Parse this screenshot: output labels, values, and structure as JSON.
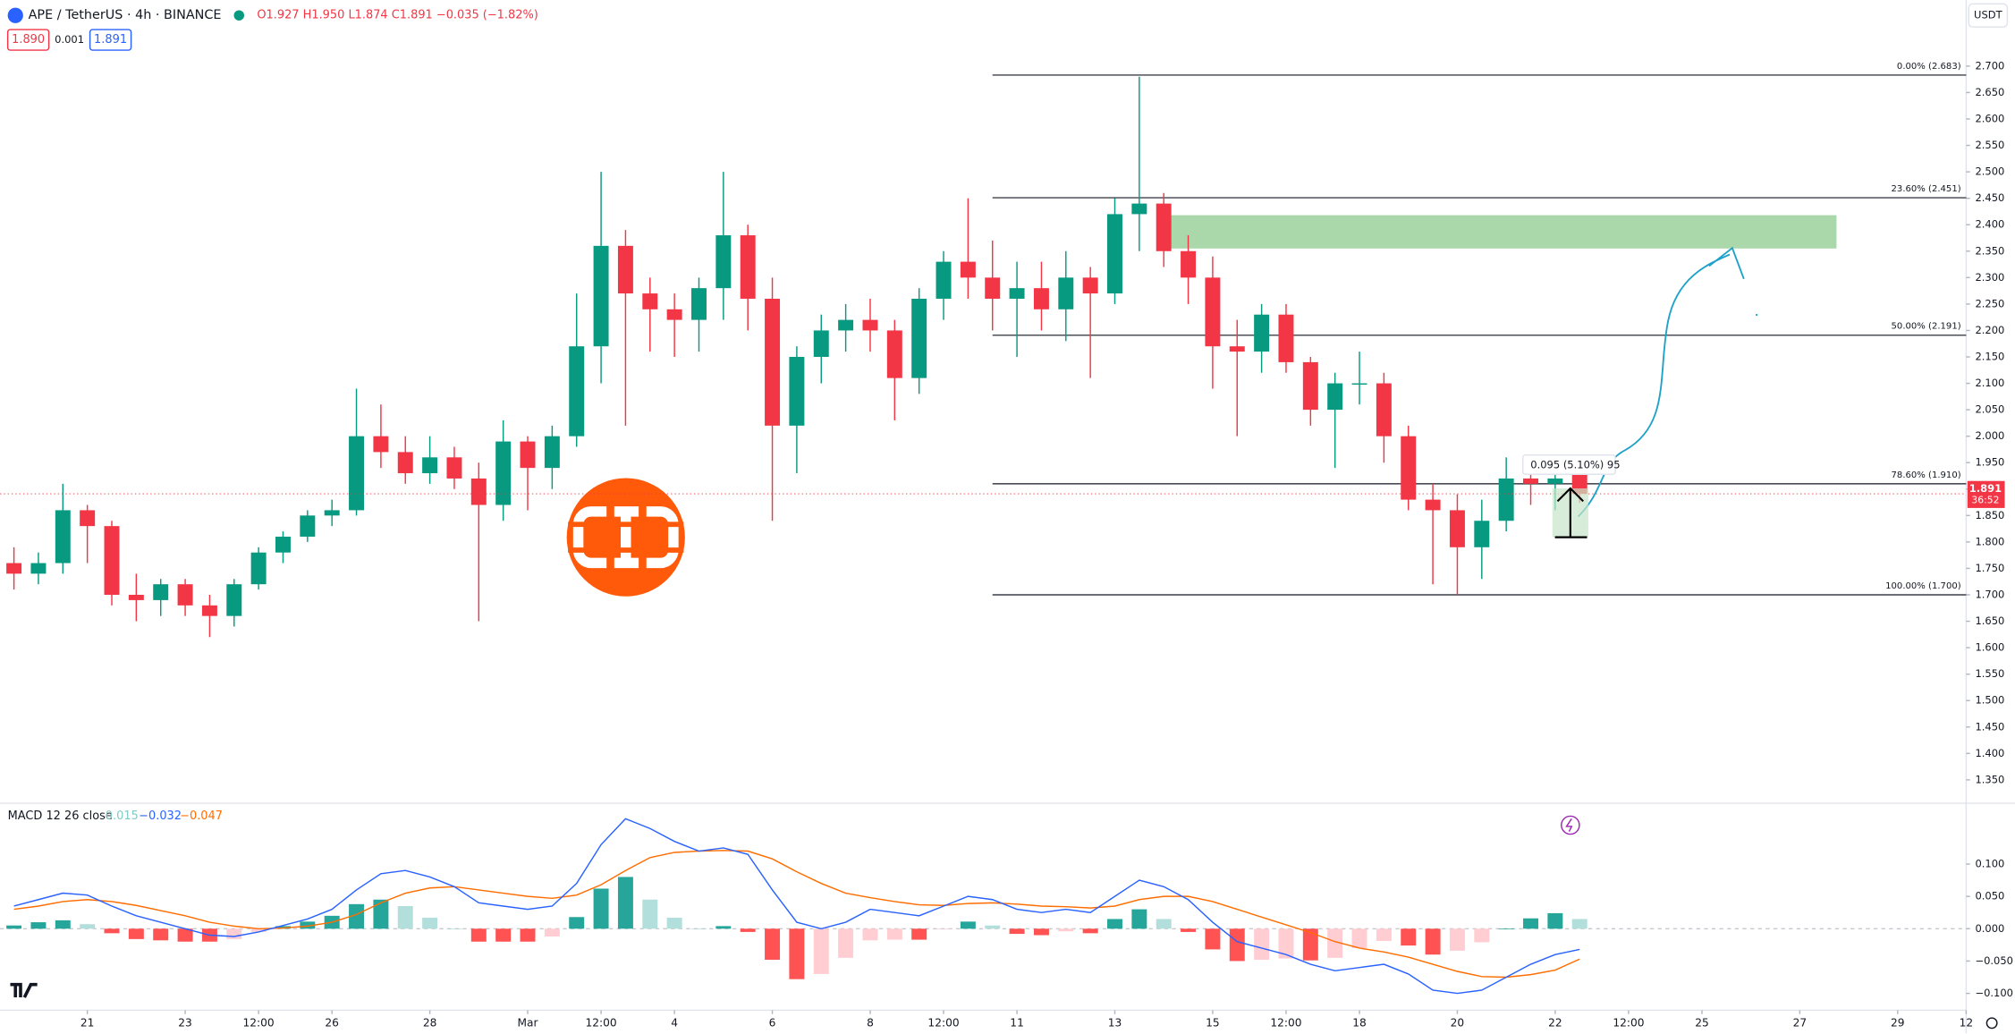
{
  "chart_data": {
    "type": "candlestick",
    "title": "APE / TetherUS · 4h · BINANCE",
    "quote": "O1.927 H1.950 L1.874 C1.891 −0.035 (−1.82%)",
    "bid": "1.890",
    "spread": "0.001",
    "ask": "1.891",
    "currency": "USDT",
    "countdown": "36:52",
    "measure": "0.095 (5.10%) 95",
    "colors": {
      "up": "#089981",
      "down": "#f23645",
      "hist_pos_strong": "#26a69a",
      "hist_pos_weak": "#b2dfdb",
      "hist_neg_strong": "#ff5252",
      "hist_neg_weak": "#ffcdd2"
    },
    "x": [
      -1.5,
      -1,
      -0.5,
      0,
      0.5,
      1,
      1.5,
      2,
      2.5,
      3,
      3.5,
      4,
      4.5,
      5,
      5.5,
      6,
      6.5,
      7,
      7.5,
      8,
      8.5,
      9,
      9.5,
      10,
      10.5,
      11,
      11.5,
      12,
      12.5,
      13,
      13.5,
      14,
      14.5,
      15,
      15.5,
      16,
      16.5,
      17,
      17.5,
      18,
      18.5,
      19,
      19.5,
      20,
      20.5,
      21,
      21.5,
      22,
      22.5,
      23,
      23.5,
      24,
      24.5,
      25,
      25.5,
      26,
      26.5,
      27,
      27.5,
      28,
      28.5,
      29,
      29.5,
      30,
      30.5
    ],
    "open": [
      1.76,
      1.74,
      1.76,
      1.86,
      1.83,
      1.7,
      1.69,
      1.72,
      1.68,
      1.66,
      1.72,
      1.78,
      1.81,
      1.85,
      1.86,
      2.0,
      1.97,
      1.93,
      1.96,
      1.92,
      1.87,
      1.99,
      1.94,
      2.0,
      2.17,
      2.36,
      2.27,
      2.24,
      2.22,
      2.28,
      2.38,
      2.26,
      2.02,
      2.15,
      2.2,
      2.22,
      2.2,
      2.11,
      2.26,
      2.33,
      2.3,
      2.26,
      2.28,
      2.24,
      2.3,
      2.27,
      2.42,
      2.44,
      2.35,
      2.3,
      2.17,
      2.16,
      2.23,
      2.14,
      2.05,
      2.1,
      2.1,
      2.0,
      1.88,
      1.86,
      1.79,
      1.84,
      1.92,
      1.91,
      1.927
    ],
    "high": [
      1.79,
      1.78,
      1.91,
      1.87,
      1.84,
      1.74,
      1.73,
      1.73,
      1.7,
      1.73,
      1.79,
      1.82,
      1.86,
      1.88,
      2.09,
      2.06,
      2.0,
      2.0,
      1.98,
      1.95,
      2.03,
      2.0,
      2.02,
      2.27,
      2.5,
      2.39,
      2.3,
      2.27,
      2.3,
      2.5,
      2.4,
      2.3,
      2.17,
      2.23,
      2.25,
      2.26,
      2.22,
      2.28,
      2.35,
      2.45,
      2.37,
      2.33,
      2.33,
      2.35,
      2.32,
      2.45,
      2.68,
      2.46,
      2.38,
      2.34,
      2.22,
      2.25,
      2.25,
      2.15,
      2.12,
      2.16,
      2.12,
      2.02,
      1.91,
      1.89,
      1.88,
      1.96,
      1.95,
      1.94,
      1.95
    ],
    "low": [
      1.71,
      1.72,
      1.74,
      1.76,
      1.68,
      1.65,
      1.66,
      1.66,
      1.62,
      1.64,
      1.71,
      1.76,
      1.8,
      1.83,
      1.85,
      1.94,
      1.91,
      1.91,
      1.9,
      1.65,
      1.84,
      1.86,
      1.9,
      1.98,
      2.1,
      2.02,
      2.16,
      2.15,
      2.16,
      2.22,
      2.2,
      1.84,
      1.93,
      2.1,
      2.16,
      2.16,
      2.03,
      2.08,
      2.22,
      2.26,
      2.2,
      2.15,
      2.2,
      2.18,
      2.11,
      2.25,
      2.35,
      2.32,
      2.25,
      2.09,
      2.0,
      2.12,
      2.12,
      2.02,
      1.94,
      2.06,
      1.95,
      1.86,
      1.72,
      1.7,
      1.73,
      1.82,
      1.87,
      1.86,
      1.874
    ],
    "close": [
      1.74,
      1.76,
      1.86,
      1.83,
      1.7,
      1.69,
      1.72,
      1.68,
      1.66,
      1.72,
      1.78,
      1.81,
      1.85,
      1.86,
      2.0,
      1.97,
      1.93,
      1.96,
      1.92,
      1.87,
      1.99,
      1.94,
      2.0,
      2.17,
      2.36,
      2.27,
      2.24,
      2.22,
      2.28,
      2.38,
      2.26,
      2.02,
      2.15,
      2.2,
      2.22,
      2.2,
      2.11,
      2.26,
      2.33,
      2.3,
      2.26,
      2.28,
      2.24,
      2.3,
      2.27,
      2.42,
      2.44,
      2.35,
      2.3,
      2.17,
      2.16,
      2.23,
      2.14,
      2.05,
      2.1,
      2.1,
      2.0,
      1.88,
      1.86,
      1.79,
      1.84,
      1.92,
      1.91,
      1.92,
      1.891
    ],
    "xlim": [
      -1.785,
      38.4
    ],
    "xticks": [
      {
        "value": 0,
        "label": "21"
      },
      {
        "value": 2,
        "label": "23"
      },
      {
        "value": 3.5,
        "label": "12:00"
      },
      {
        "value": 5,
        "label": "26"
      },
      {
        "value": 7,
        "label": "28"
      },
      {
        "value": 9,
        "label": "Mar"
      },
      {
        "value": 10.5,
        "label": "12:00"
      },
      {
        "value": 12,
        "label": "4"
      },
      {
        "value": 14,
        "label": "6"
      },
      {
        "value": 16,
        "label": "8"
      },
      {
        "value": 17.5,
        "label": "12:00"
      },
      {
        "value": 19,
        "label": "11"
      },
      {
        "value": 21,
        "label": "13"
      },
      {
        "value": 23,
        "label": "15"
      },
      {
        "value": 24.5,
        "label": "12:00"
      },
      {
        "value": 26,
        "label": "18"
      },
      {
        "value": 28,
        "label": "20"
      },
      {
        "value": 30,
        "label": "22"
      },
      {
        "value": 31.5,
        "label": "12:00"
      },
      {
        "value": 33,
        "label": "25"
      },
      {
        "value": 35,
        "label": "27"
      },
      {
        "value": 37,
        "label": "29"
      },
      {
        "value": 38.4,
        "label": "12"
      }
    ],
    "ylim": [
      1.313,
      2.825
    ],
    "yticks": [
      {
        "value": 1.35,
        "label": "1.350"
      },
      {
        "value": 1.4,
        "label": "1.400"
      },
      {
        "value": 1.45,
        "label": "1.450"
      },
      {
        "value": 1.5,
        "label": "1.500"
      },
      {
        "value": 1.55,
        "label": "1.550"
      },
      {
        "value": 1.6,
        "label": "1.600"
      },
      {
        "value": 1.65,
        "label": "1.650"
      },
      {
        "value": 1.7,
        "label": "1.700"
      },
      {
        "value": 1.75,
        "label": "1.750"
      },
      {
        "value": 1.8,
        "label": "1.800"
      },
      {
        "value": 1.85,
        "label": "1.850"
      },
      {
        "value": 1.9,
        "label": "1.900"
      },
      {
        "value": 1.95,
        "label": "1.950"
      },
      {
        "value": 2.0,
        "label": "2.000"
      },
      {
        "value": 2.05,
        "label": "2.050"
      },
      {
        "value": 2.1,
        "label": "2.100"
      },
      {
        "value": 2.15,
        "label": "2.150"
      },
      {
        "value": 2.2,
        "label": "2.200"
      },
      {
        "value": 2.25,
        "label": "2.250"
      },
      {
        "value": 2.3,
        "label": "2.300"
      },
      {
        "value": 2.35,
        "label": "2.350"
      },
      {
        "value": 2.4,
        "label": "2.400"
      },
      {
        "value": 2.45,
        "label": "2.450"
      },
      {
        "value": 2.5,
        "label": "2.500"
      },
      {
        "value": 2.55,
        "label": "2.550"
      },
      {
        "value": 2.6,
        "label": "2.600"
      },
      {
        "value": 2.65,
        "label": "2.650"
      },
      {
        "value": 2.7,
        "label": "2.700"
      }
    ],
    "fib": {
      "x_start": 18.5,
      "levels": [
        {
          "value": 2.683,
          "label": "0.00% (2.683)"
        },
        {
          "value": 2.451,
          "label": "23.60% (2.451)"
        },
        {
          "value": 2.191,
          "label": "50.00% (2.191)"
        },
        {
          "value": 1.91,
          "label": "78.60% (1.910)"
        },
        {
          "value": 1.7,
          "label": "100.00% (1.700)"
        }
      ]
    },
    "zone": {
      "x": [
        22.0,
        35.75
      ],
      "y": [
        2.355,
        2.418
      ],
      "color": "#a5d6a7"
    },
    "macd": {
      "label": "MACD 12 26 close",
      "hist": [
        0.005,
        0.01,
        0.013,
        0.007,
        -0.007,
        -0.016,
        -0.018,
        -0.02,
        -0.02,
        -0.016,
        -0.005,
        0.004,
        0.011,
        0.02,
        0.038,
        0.045,
        0.035,
        0.017,
        0.0,
        -0.02,
        -0.02,
        -0.02,
        -0.012,
        0.018,
        0.062,
        0.08,
        0.045,
        0.017,
        0.0,
        0.004,
        -0.005,
        -0.048,
        -0.078,
        -0.07,
        -0.045,
        -0.018,
        -0.017,
        -0.017,
        -0.001,
        0.011,
        0.005,
        -0.008,
        -0.01,
        -0.004,
        -0.007,
        0.015,
        0.03,
        0.015,
        -0.005,
        -0.032,
        -0.05,
        -0.048,
        -0.046,
        -0.049,
        -0.045,
        -0.03,
        -0.019,
        -0.026,
        -0.04,
        -0.034,
        -0.021,
        0.0,
        0.016,
        0.024,
        0.015
      ],
      "macd": [
        0.035,
        0.045,
        0.055,
        0.052,
        0.035,
        0.02,
        0.01,
        0.0,
        -0.01,
        -0.012,
        -0.005,
        0.005,
        0.015,
        0.03,
        0.06,
        0.085,
        0.09,
        0.08,
        0.065,
        0.04,
        0.035,
        0.03,
        0.035,
        0.07,
        0.13,
        0.17,
        0.155,
        0.135,
        0.12,
        0.125,
        0.115,
        0.06,
        0.01,
        0.0,
        0.01,
        0.03,
        0.025,
        0.02,
        0.035,
        0.05,
        0.045,
        0.03,
        0.025,
        0.03,
        0.025,
        0.05,
        0.075,
        0.065,
        0.045,
        0.01,
        -0.02,
        -0.03,
        -0.04,
        -0.055,
        -0.065,
        -0.06,
        -0.055,
        -0.07,
        -0.095,
        -0.1,
        -0.095,
        -0.075,
        -0.055,
        -0.04,
        -0.032
      ],
      "signal": [
        0.03,
        0.035,
        0.042,
        0.045,
        0.042,
        0.036,
        0.028,
        0.02,
        0.01,
        0.004,
        0.0,
        0.001,
        0.004,
        0.01,
        0.022,
        0.04,
        0.055,
        0.063,
        0.065,
        0.06,
        0.055,
        0.05,
        0.047,
        0.052,
        0.068,
        0.09,
        0.11,
        0.118,
        0.12,
        0.121,
        0.12,
        0.108,
        0.088,
        0.07,
        0.055,
        0.048,
        0.042,
        0.037,
        0.036,
        0.039,
        0.04,
        0.038,
        0.035,
        0.034,
        0.032,
        0.035,
        0.045,
        0.05,
        0.05,
        0.042,
        0.03,
        0.018,
        0.006,
        -0.006,
        -0.02,
        -0.03,
        -0.036,
        -0.044,
        -0.055,
        -0.066,
        -0.074,
        -0.075,
        -0.071,
        -0.064,
        -0.047
      ],
      "value_labels": [
        "0.015",
        "−0.032",
        "−0.047"
      ],
      "macd_color": "#2962ff",
      "signal_color": "#ff6d00",
      "hist_label_color": "#80cbc4"
    },
    "y2lim": [
      -0.134,
      0.184
    ],
    "y2ticks": [
      {
        "value": 0.1,
        "label": "0.100"
      },
      {
        "value": 0.05,
        "label": "0.050"
      },
      {
        "value": 0,
        "label": "0.000"
      },
      {
        "value": -0.05,
        "label": "−0.050"
      },
      {
        "value": -0.1,
        "label": "−0.100"
      }
    ]
  }
}
